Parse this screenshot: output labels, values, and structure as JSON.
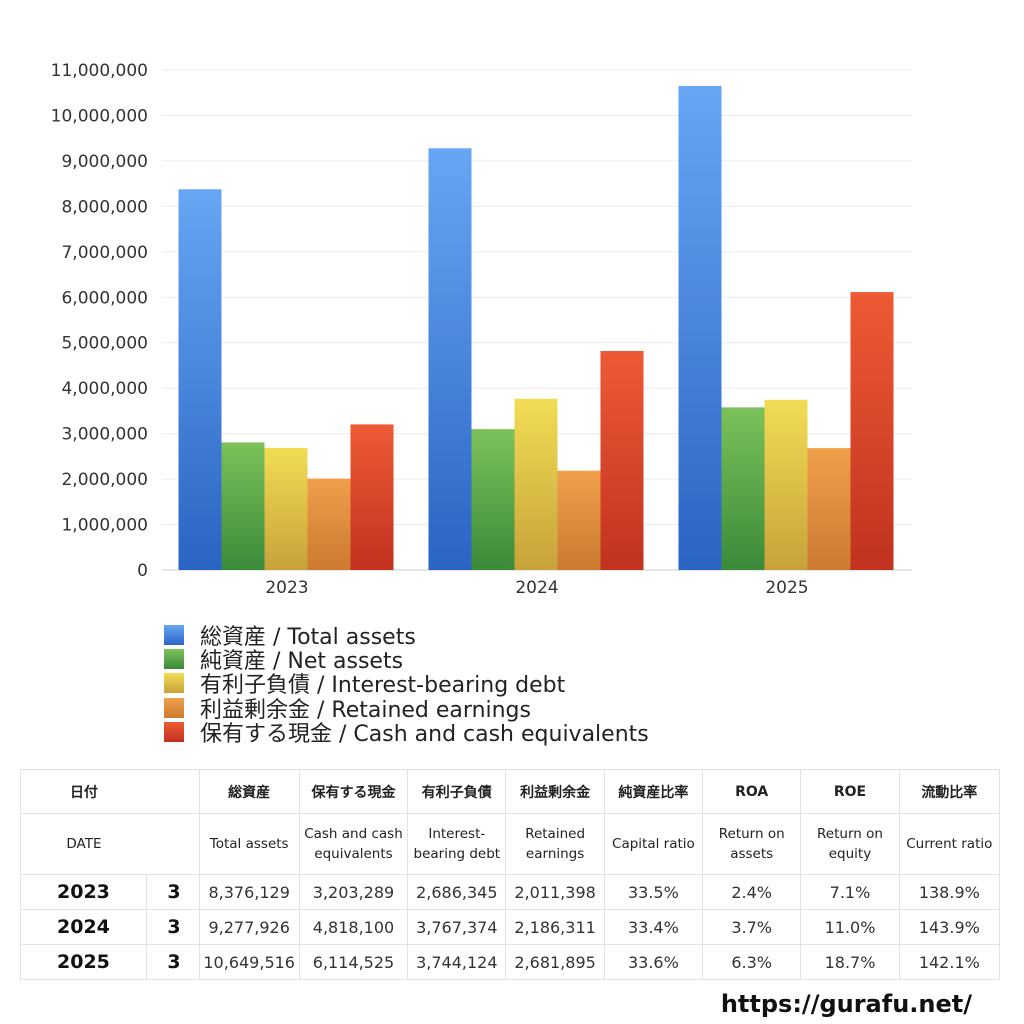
{
  "chart_data": {
    "type": "bar",
    "categories": [
      "2023",
      "2024",
      "2025"
    ],
    "ylim": [
      0,
      11000000
    ],
    "y_ticks": [
      "0",
      "1,000,000",
      "2,000,000",
      "3,000,000",
      "4,000,000",
      "5,000,000",
      "6,000,000",
      "7,000,000",
      "8,000,000",
      "9,000,000",
      "10,000,000",
      "11,000,000"
    ],
    "series": [
      {
        "name": "総資産 / Total assets",
        "color_top": "#66a6f4",
        "color_bottom": "#2a64c4",
        "values": [
          8376129,
          9277926,
          10649516
        ]
      },
      {
        "name": "純資産 / Net assets",
        "color_top": "#7cc25a",
        "color_bottom": "#3b8a3a",
        "values": [
          2807000,
          3099000,
          3578000
        ]
      },
      {
        "name": "有利子負債 / Interest-bearing debt",
        "color_top": "#f2dd55",
        "color_bottom": "#c7a23a",
        "values": [
          2686345,
          3767374,
          3744124
        ]
      },
      {
        "name": "利益剰余金 / Retained earnings",
        "color_top": "#efa04a",
        "color_bottom": "#cc7a30",
        "values": [
          2011398,
          2186311,
          2681895
        ]
      },
      {
        "name": "保有する現金 /  Cash and cash equivalents",
        "color_top": "#ee5a34",
        "color_bottom": "#c1321f",
        "values": [
          3203289,
          4818100,
          6114525
        ]
      }
    ],
    "legend_position": "bottom"
  },
  "table": {
    "headers_jp": [
      "日付",
      "",
      "総資産",
      "保有する現金",
      "有利子負債",
      "利益剰余金",
      "純資産比率",
      "ROA",
      "ROE",
      "流動比率"
    ],
    "headers_en": [
      "DATE",
      "",
      "Total assets",
      "Cash and cash equivalents",
      "Interest-bearing debt",
      "Retained earnings",
      "Capital ratio",
      "Return on assets",
      "Return on equity",
      "Current ratio"
    ],
    "rows": [
      [
        "2023",
        "3",
        "8,376,129",
        "3,203,289",
        "2,686,345",
        "2,011,398",
        "33.5%",
        "2.4%",
        "7.1%",
        "138.9%"
      ],
      [
        "2024",
        "3",
        "9,277,926",
        "4,818,100",
        "3,767,374",
        "2,186,311",
        "33.4%",
        "3.7%",
        "11.0%",
        "143.9%"
      ],
      [
        "2025",
        "3",
        "10,649,516",
        "6,114,525",
        "3,744,124",
        "2,681,895",
        "33.6%",
        "6.3%",
        "18.7%",
        "142.1%"
      ]
    ]
  },
  "footer": {
    "url": "https://gurafu.net/"
  }
}
